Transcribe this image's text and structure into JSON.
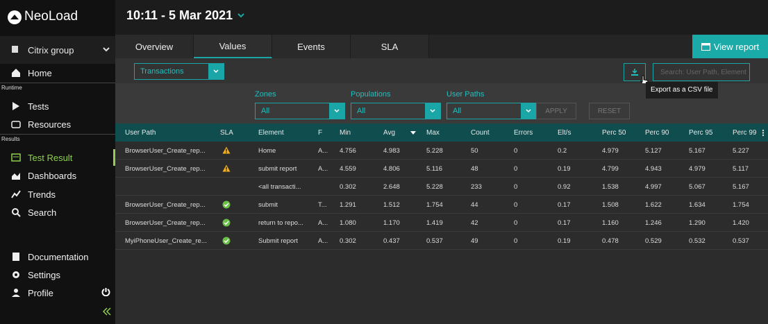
{
  "sidebar": {
    "logo": "NeoLoad",
    "group": "Citrix group",
    "items": [
      {
        "label": "Home",
        "y": 105
      },
      {
        "section": "Runtime"
      },
      {
        "label": "Tests"
      },
      {
        "label": "Resources"
      },
      {
        "section": "Results"
      },
      {
        "label": "Test Result",
        "active": true
      },
      {
        "label": "Dashboards"
      },
      {
        "label": "Trends"
      },
      {
        "label": "Search"
      },
      {
        "label": "Documentation"
      },
      {
        "label": "Settings"
      },
      {
        "label": "Profile"
      }
    ]
  },
  "header": {
    "title": "10:11 - 5 Mar 2021"
  },
  "tabs": [
    {
      "label": "Overview"
    },
    {
      "label": "Values",
      "active": true
    },
    {
      "label": "Events"
    },
    {
      "label": "SLA"
    }
  ],
  "view_report": "View report",
  "toolbar": {
    "dropdown": "Transactions",
    "search_placeholder": "Search: User Path, Element",
    "tooltip": "Export as a CSV file"
  },
  "filters": [
    {
      "label": "Zones",
      "value": "All"
    },
    {
      "label": "Populations",
      "value": "All"
    },
    {
      "label": "User Paths",
      "value": "All"
    }
  ],
  "buttons": [
    "APPLY",
    "RESET"
  ],
  "table": {
    "columns": [
      "User Path",
      "SLA",
      "Element",
      "F",
      "Min",
      "Avg",
      "Max",
      "Count",
      "Errors",
      "Elt/s",
      "Perc 50",
      "Perc 90",
      "Perc 95",
      "Perc 99"
    ],
    "rows": [
      [
        "BrowserUser_Create_rep...",
        "warning",
        "Home",
        "A...",
        "4.756",
        "4.983",
        "5.228",
        "50",
        "0",
        "0.2",
        "4.979",
        "5.127",
        "5.167",
        "5.227"
      ],
      [
        "BrowserUser_Create_rep...",
        "warning",
        "submit report",
        "A...",
        "4.559",
        "4.806",
        "5.116",
        "48",
        "0",
        "0.19",
        "4.799",
        "4.943",
        "4.979",
        "5.117"
      ],
      [
        null,
        null,
        "<all transacti...",
        null,
        "0.302",
        "2.648",
        "5.228",
        "233",
        "0",
        "0.92",
        "1.538",
        "4.997",
        "5.067",
        "5.167"
      ],
      [
        "BrowserUser_Create_rep...",
        "ok",
        "submit",
        "T...",
        "1.291",
        "1.512",
        "1.754",
        "44",
        "0",
        "0.17",
        "1.508",
        "1.622",
        "1.634",
        "1.754"
      ],
      [
        "BrowserUser_Create_rep...",
        "ok",
        "return to repo...",
        "A...",
        "1.080",
        "1.170",
        "1.419",
        "42",
        "0",
        "0.17",
        "1.160",
        "1.246",
        "1.290",
        "1.420"
      ],
      [
        "MyiPhoneUser_Create_re...",
        "ok",
        "Submit report",
        "A...",
        "0.302",
        "0.437",
        "0.537",
        "49",
        "0",
        "0.19",
        "0.478",
        "0.529",
        "0.532",
        "0.537"
      ]
    ]
  }
}
